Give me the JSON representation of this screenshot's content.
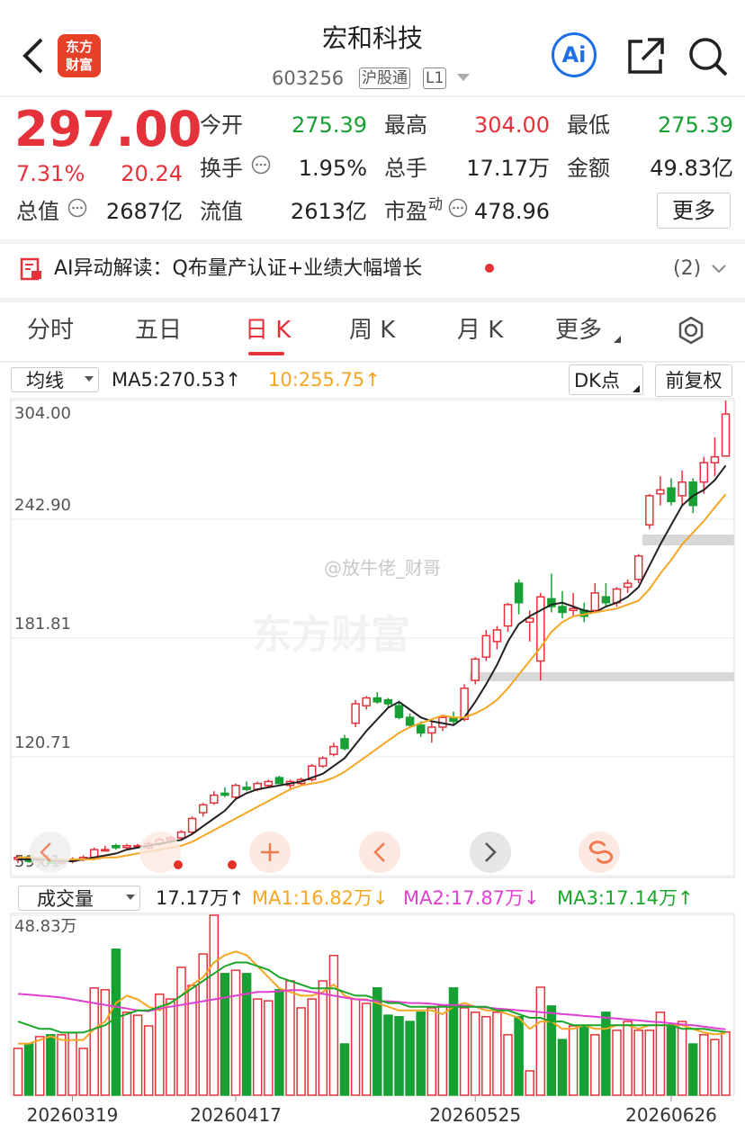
{
  "header": {
    "title": "宏和科技",
    "code": "603256",
    "tags": [
      "沪股通",
      "L1"
    ],
    "logo": [
      "东方",
      "财富"
    ],
    "ai": "Ai"
  },
  "quote": {
    "price": "297.00",
    "change_pct": "7.31%",
    "change": "20.24",
    "fields": [
      {
        "label": "今开",
        "value": "275.39"
      },
      {
        "label": "最高",
        "value": "304.00"
      },
      {
        "label": "最低",
        "value": "275.39"
      },
      {
        "label": "换手",
        "value": "1.95%"
      },
      {
        "label": "总手",
        "value": "17.17万"
      },
      {
        "label": "金额",
        "value": "49.83亿"
      },
      {
        "label": "总值",
        "value": "2687亿"
      },
      {
        "label": "流值",
        "value": "2613亿"
      },
      {
        "label": "市盈",
        "sup": "动",
        "value": "478.96"
      }
    ],
    "more": "更多"
  },
  "banner": {
    "text": "AI异动解读：Q布量产认证+业绩大幅增长",
    "count": "(2)"
  },
  "tabs": [
    "分时",
    "五日",
    "日 K",
    "周 K",
    "月 K",
    "更多"
  ],
  "toolbar": {
    "ma_select": "均线",
    "ma5": "MA5:270.53↑",
    "ma10": "10:255.75↑",
    "dk": "DK点",
    "adjust": "前复权"
  },
  "watermark": [
    "@放牛佬_财哥",
    "东方财富"
  ],
  "chart_data": [
    {
      "type": "candlestick",
      "categories": [
        null,
        null,
        null,
        null,
        null,
        "20260319",
        null,
        null,
        null,
        null,
        null,
        null,
        null,
        null,
        null,
        null,
        null,
        null,
        null,
        null,
        "20260417",
        null,
        null,
        null,
        null,
        null,
        null,
        null,
        null,
        null,
        null,
        null,
        null,
        null,
        null,
        null,
        null,
        null,
        null,
        null,
        null,
        null,
        "20260525",
        null,
        null,
        null,
        null,
        null,
        null,
        null,
        null,
        null,
        null,
        null,
        null,
        null,
        null,
        null,
        null,
        null,
        "20260626",
        null,
        null,
        null,
        null,
        null
      ],
      "ohlc": [
        [
          68,
          70,
          66,
          69
        ],
        [
          69,
          70,
          67,
          67
        ],
        [
          67,
          69,
          65,
          68
        ],
        [
          68,
          69,
          66,
          66
        ],
        [
          66,
          68,
          65,
          67
        ],
        [
          67,
          69,
          66,
          68
        ],
        [
          68,
          70,
          67,
          69
        ],
        [
          69,
          74,
          68,
          73
        ],
        [
          73,
          75,
          72,
          73
        ],
        [
          75,
          76,
          73,
          74
        ],
        [
          74,
          76,
          73,
          75
        ],
        [
          75,
          76,
          74,
          75
        ],
        [
          74,
          77,
          73,
          76
        ],
        [
          76,
          79,
          75,
          78
        ],
        [
          78,
          80,
          76,
          79
        ],
        [
          79,
          83,
          78,
          82
        ],
        [
          82,
          90,
          81,
          89
        ],
        [
          92,
          97,
          90,
          96
        ],
        [
          97,
          103,
          96,
          101
        ],
        [
          102,
          105,
          100,
          101
        ],
        [
          100,
          107,
          99,
          106
        ],
        [
          105,
          108,
          103,
          104
        ],
        [
          104,
          108,
          103,
          107
        ],
        [
          106,
          109,
          105,
          108
        ],
        [
          110,
          111,
          107,
          107
        ],
        [
          106,
          109,
          104,
          108
        ],
        [
          107,
          110,
          106,
          109
        ],
        [
          109,
          117,
          108,
          116
        ],
        [
          116,
          121,
          115,
          120
        ],
        [
          122,
          128,
          121,
          126
        ],
        [
          130,
          132,
          124,
          125
        ],
        [
          138,
          150,
          136,
          148
        ],
        [
          147,
          152,
          145,
          151
        ],
        [
          151,
          154,
          148,
          149
        ],
        [
          150,
          151,
          146,
          148
        ],
        [
          147,
          149,
          140,
          141
        ],
        [
          141,
          143,
          136,
          137
        ],
        [
          137,
          139,
          131,
          133
        ],
        [
          133,
          139,
          128,
          136
        ],
        [
          136,
          142,
          134,
          141
        ],
        [
          141,
          144,
          137,
          139
        ],
        [
          140,
          158,
          139,
          156
        ],
        [
          160,
          172,
          158,
          171
        ],
        [
          172,
          186,
          170,
          183
        ],
        [
          180,
          188,
          176,
          186
        ],
        [
          188,
          200,
          185,
          199
        ],
        [
          210,
          212,
          194,
          200
        ],
        [
          190,
          196,
          180,
          192
        ],
        [
          170,
          205,
          160,
          203
        ],
        [
          202,
          215,
          195,
          198
        ],
        [
          198,
          206,
          192,
          195
        ],
        [
          196,
          205,
          193,
          197
        ],
        [
          196,
          200,
          190,
          193
        ],
        [
          196,
          210,
          195,
          205
        ],
        [
          203,
          210,
          198,
          200
        ],
        [
          200,
          208,
          198,
          207
        ],
        [
          208,
          212,
          205,
          210
        ],
        [
          212,
          225,
          210,
          224
        ],
        [
          240,
          256,
          238,
          255
        ],
        [
          256,
          265,
          250,
          258
        ],
        [
          259,
          264,
          250,
          252
        ],
        [
          255,
          268,
          250,
          262
        ],
        [
          262,
          264,
          246,
          250
        ],
        [
          262,
          275,
          256,
          272
        ],
        [
          272,
          285,
          265,
          275
        ],
        [
          275.39,
          304,
          275.39,
          297
        ]
      ],
      "up_color": "#e5323a",
      "down_color": "#17a034",
      "series": [
        {
          "color": "#222222",
          "values": [
            68,
            68,
            68,
            68,
            67,
            67,
            68,
            69,
            70,
            71,
            73,
            74,
            75,
            76,
            77,
            78,
            81,
            85,
            89,
            93,
            99,
            102,
            104,
            105,
            106,
            107,
            108,
            110,
            112,
            116,
            120,
            127,
            134,
            140,
            146,
            149,
            145,
            141,
            139,
            138,
            137,
            141,
            149,
            158,
            168,
            180,
            189,
            193,
            196,
            199,
            200,
            198,
            196,
            195,
            198,
            200,
            203,
            208,
            219,
            230,
            240,
            250,
            255,
            258,
            263,
            270.53
          ]
        },
        {
          "color": "#f5a623",
          "values": [
            69,
            69,
            69,
            68,
            68,
            68,
            68,
            68,
            69,
            69,
            70,
            71,
            72,
            73,
            74,
            75,
            77,
            80,
            83,
            86,
            89,
            92,
            95,
            98,
            101,
            104,
            106,
            107,
            108,
            110,
            113,
            117,
            121,
            125,
            129,
            133,
            136,
            138,
            140,
            142,
            141,
            141,
            143,
            146,
            150,
            156,
            163,
            170,
            177,
            185,
            190,
            193,
            194,
            195,
            196,
            197,
            199,
            201,
            207,
            215,
            222,
            230,
            236,
            242,
            249,
            255.75
          ]
        }
      ],
      "ylim": [
        59.61,
        304
      ],
      "yticks": [
        {
          "value": 304,
          "label": "304.00"
        },
        {
          "value": 242.9,
          "label": "242.90"
        },
        181.81,
        120.71,
        59.61
      ],
      "grid": true
    },
    {
      "type": "bar",
      "selector": "成交量",
      "legend": [
        "17.17万↑",
        "MA1:16.82万↓",
        "MA2:17.87万↓",
        "MA3:17.14万↑"
      ],
      "values": [
        12.7,
        13.9,
        15.9,
        16.4,
        16.4,
        16.9,
        12.7,
        29.1,
        28.6,
        39.6,
        22.5,
        21.7,
        18.8,
        27.4,
        26.1,
        34.7,
        29.8,
        38.3,
        48.83,
        33.0,
        33.9,
        33.0,
        26.1,
        25.6,
        28.6,
        31.0,
        23.7,
        26.1,
        31.0,
        37.9,
        13.9,
        26.1,
        24.9,
        29.1,
        21.7,
        21.3,
        20.0,
        22.5,
        23.7,
        24.2,
        29.1,
        23.7,
        22.5,
        21.3,
        22.5,
        16.4,
        21.3,
        6.6,
        29.3,
        24.2,
        15.1,
        18.8,
        18.8,
        16.4,
        22.5,
        17.6,
        20.0,
        17.6,
        17.6,
        22.5,
        18.8,
        20.0,
        13.9,
        16.4,
        15.1,
        17.17
      ],
      "series": [
        {
          "color": "#f5a623",
          "values": [
            14,
            14,
            15,
            16,
            15,
            15,
            15,
            18,
            20,
            25,
            27,
            26,
            24,
            23,
            25,
            27,
            30,
            32,
            36,
            38,
            39,
            38,
            35,
            32,
            29,
            28,
            27,
            27,
            28,
            30,
            27,
            26,
            26,
            25,
            24,
            23,
            23,
            23,
            23,
            22,
            24,
            25,
            24,
            23,
            23,
            22,
            21,
            18,
            20,
            20,
            18,
            18,
            19,
            18,
            18,
            19,
            19,
            18,
            19,
            19,
            19,
            19,
            18,
            17,
            16.5,
            16.82
          ]
        },
        {
          "color": "#e040d0",
          "values": [
            27.5,
            27.3,
            27.0,
            26.8,
            26.5,
            26.0,
            25.5,
            25.0,
            24.5,
            24.0,
            23.5,
            23.0,
            22.8,
            23.5,
            24.0,
            24.5,
            25.0,
            25.5,
            26.0,
            26.5,
            27.0,
            27.5,
            28.0,
            28.0,
            28.2,
            28.5,
            28.5,
            28.0,
            27.5,
            27.0,
            26.5,
            26.0,
            25.8,
            25.5,
            25.5,
            25.3,
            25.0,
            25.0,
            24.8,
            24.5,
            24.5,
            24.3,
            24.0,
            23.8,
            23.5,
            23.3,
            23.0,
            22.8,
            22.5,
            22.3,
            22.0,
            21.8,
            21.5,
            21.3,
            21.0,
            20.8,
            20.5,
            20.3,
            20.0,
            19.8,
            19.5,
            19.2,
            19.0,
            18.6,
            18.2,
            17.87
          ]
        },
        {
          "color": "#1aa62a",
          "values": [
            20,
            19,
            18,
            18,
            17,
            17,
            17,
            18,
            19,
            21,
            22,
            23,
            23,
            24,
            25,
            27,
            29,
            31,
            33,
            35,
            36,
            36,
            35,
            34,
            32,
            31,
            30,
            29,
            29,
            29,
            28,
            27,
            27,
            26,
            25,
            25,
            24,
            24,
            24,
            24,
            24,
            24,
            24,
            24,
            23,
            23,
            22,
            21,
            21,
            20,
            20,
            19,
            19,
            19,
            19,
            19,
            19,
            19,
            19,
            19,
            19,
            18,
            18,
            18,
            17.5,
            17.14
          ]
        }
      ],
      "ylim": [
        0,
        48.83
      ],
      "yticks": [
        {
          "value": 48.83,
          "label": "48.83万"
        }
      ]
    }
  ]
}
